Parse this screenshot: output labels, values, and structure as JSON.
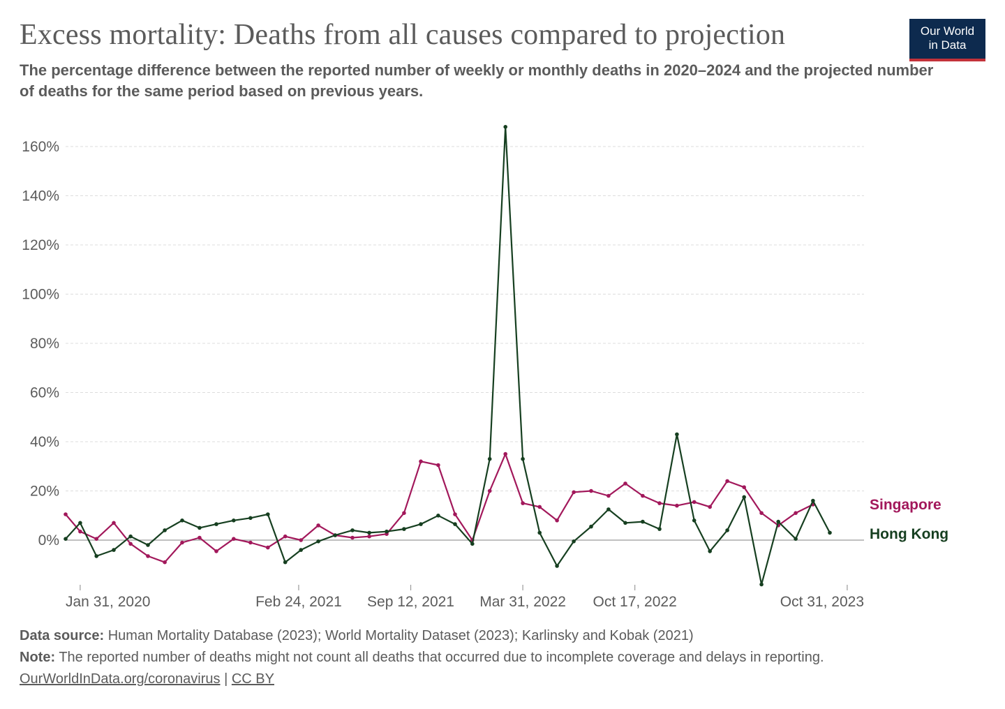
{
  "header": {
    "title": "Excess mortality: Deaths from all causes compared to projection",
    "subtitle": "The percentage difference between the reported number of weekly or monthly deaths in 2020–2024 and the projected number of deaths for the same period based on previous years.",
    "logo_line1": "Our World",
    "logo_line2": "in Data"
  },
  "footer": {
    "source_label": "Data source:",
    "source_text": "Human Mortality Database (2023); World Mortality Dataset (2023); Karlinsky and Kobak (2021)",
    "note_label": "Note:",
    "note_text": "The reported number of deaths might not count all deaths that occurred due to incomplete coverage and delays in reporting.",
    "link1": "OurWorldInData.org/coronavirus",
    "separator": "|",
    "link2": "CC BY"
  },
  "colors": {
    "singapore": "#a2185b",
    "hong_kong": "#163f20",
    "grid": "#dddddd",
    "axis_text": "#5b5b5b",
    "brand": "#0d2a4e",
    "brand_accent": "#c3323a"
  },
  "chart_data": {
    "type": "line",
    "title": "Excess mortality: Deaths from all causes compared to projection",
    "xlabel": "",
    "ylabel": "",
    "ylim": [
      -18,
      170
    ],
    "yticks": [
      0,
      20,
      40,
      60,
      80,
      100,
      120,
      140,
      160
    ],
    "ytick_labels": [
      "0%",
      "20%",
      "40%",
      "60%",
      "80%",
      "100%",
      "120%",
      "140%",
      "160%"
    ],
    "xlim": [
      "2020-01-05",
      "2023-11-30"
    ],
    "xticks": [
      "2020-01-31",
      "2021-02-24",
      "2021-09-12",
      "2022-03-31",
      "2022-10-17",
      "2023-10-31"
    ],
    "xtick_labels": [
      "Jan 31, 2020",
      "Feb 24, 2021",
      "Sep 12, 2021",
      "Mar 31, 2022",
      "Oct 17, 2022",
      "Oct 31, 2023"
    ],
    "grid": true,
    "legend": "right-end labels",
    "series": [
      {
        "name": "Singapore",
        "color": "#a2185b",
        "x": [
          "2020-01-05",
          "2020-01-31",
          "2020-02-29",
          "2020-03-31",
          "2020-04-30",
          "2020-05-31",
          "2020-06-30",
          "2020-07-31",
          "2020-08-31",
          "2020-09-30",
          "2020-10-31",
          "2020-11-30",
          "2020-12-31",
          "2021-01-31",
          "2021-02-28",
          "2021-03-31",
          "2021-04-30",
          "2021-05-31",
          "2021-06-30",
          "2021-07-31",
          "2021-08-31",
          "2021-09-30",
          "2021-10-31",
          "2021-11-30",
          "2021-12-31",
          "2022-01-31",
          "2022-02-28",
          "2022-03-31",
          "2022-04-30",
          "2022-05-31",
          "2022-06-30",
          "2022-07-31",
          "2022-08-31",
          "2022-09-30",
          "2022-10-31",
          "2022-11-30",
          "2022-12-31",
          "2023-01-31",
          "2023-02-28",
          "2023-03-31",
          "2023-04-30",
          "2023-05-31",
          "2023-06-30",
          "2023-07-31",
          "2023-08-31",
          "2023-09-30",
          "2023-10-31"
        ],
        "values": [
          10.5,
          3.5,
          0.5,
          7,
          -1.5,
          -6.5,
          -9,
          -1,
          1,
          -4.5,
          0.5,
          -1,
          -3,
          1.5,
          0,
          6,
          2,
          1,
          1.5,
          2.5,
          11,
          32,
          30.5,
          10.5,
          0,
          20,
          35,
          15,
          13.5,
          8,
          19.5,
          20,
          18,
          23,
          18,
          15,
          14,
          15.5,
          13.5,
          24,
          21.5,
          11,
          6,
          11,
          14.5,
          null,
          null
        ]
      },
      {
        "name": "Hong Kong",
        "color": "#163f20",
        "x": [
          "2020-01-05",
          "2020-01-31",
          "2020-02-29",
          "2020-03-31",
          "2020-04-30",
          "2020-05-31",
          "2020-06-30",
          "2020-07-31",
          "2020-08-31",
          "2020-09-30",
          "2020-10-31",
          "2020-11-30",
          "2020-12-31",
          "2021-01-31",
          "2021-02-28",
          "2021-03-31",
          "2021-04-30",
          "2021-05-31",
          "2021-06-30",
          "2021-07-31",
          "2021-08-31",
          "2021-09-30",
          "2021-10-31",
          "2021-11-30",
          "2021-12-31",
          "2022-01-31",
          "2022-02-28",
          "2022-03-31",
          "2022-04-30",
          "2022-05-31",
          "2022-06-30",
          "2022-07-31",
          "2022-08-31",
          "2022-09-30",
          "2022-10-31",
          "2022-11-30",
          "2022-12-31",
          "2023-01-31",
          "2023-02-28",
          "2023-03-31",
          "2023-04-30",
          "2023-05-31",
          "2023-06-30",
          "2023-07-31",
          "2023-08-31",
          "2023-09-30",
          "2023-10-31"
        ],
        "values": [
          0.5,
          7,
          -6.5,
          -4,
          1.5,
          -2,
          4,
          8,
          5,
          6.5,
          8,
          9,
          10.5,
          -9,
          -4,
          -0.5,
          2,
          4,
          3,
          3.5,
          4.5,
          6.5,
          10,
          6.5,
          -1.5,
          33,
          168,
          33,
          3,
          -10.5,
          -0.5,
          5.5,
          12.5,
          7,
          7.5,
          4.5,
          43,
          8,
          -4.5,
          4,
          17.5,
          -18,
          7.5,
          0.5,
          16,
          3,
          null
        ]
      }
    ]
  }
}
